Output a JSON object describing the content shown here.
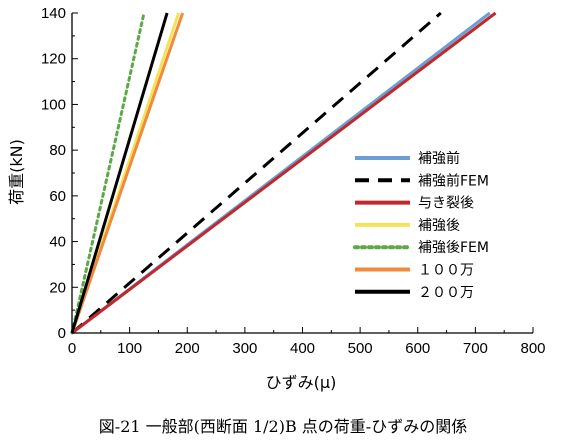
{
  "chart_data": {
    "type": "line",
    "xlabel": "ひずみ(μ)",
    "ylabel": "荷重(kN)",
    "xlim": [
      0,
      800
    ],
    "ylim": [
      0,
      140
    ],
    "xticks": [
      0,
      100,
      200,
      300,
      400,
      500,
      600,
      700,
      800
    ],
    "yticks": [
      0,
      20,
      40,
      60,
      80,
      100,
      120,
      140
    ],
    "grid": false,
    "legend_position": "right",
    "caption": "図-21  一般部(西断面 1/2)B 点の荷重-ひずみの関係",
    "series": [
      {
        "name": "補強前",
        "color": "#6a9fd4",
        "style": "solid",
        "width": 3,
        "x": [
          0,
          725
        ],
        "y": [
          0,
          140
        ]
      },
      {
        "name": "補強前FEM",
        "color": "#000000",
        "style": "dashed",
        "width": 3,
        "x": [
          0,
          640
        ],
        "y": [
          0,
          140
        ]
      },
      {
        "name": "与き裂後",
        "color": "#c0282d",
        "style": "solid",
        "width": 3,
        "x": [
          0,
          735
        ],
        "y": [
          0,
          140
        ]
      },
      {
        "name": "補強後",
        "color": "#f4e35a",
        "style": "solid",
        "width": 3,
        "x": [
          0,
          185
        ],
        "y": [
          0,
          140
        ]
      },
      {
        "name": "補強後FEM",
        "color": "#5da847",
        "style": "dotted",
        "width": 3,
        "x": [
          0,
          125
        ],
        "y": [
          0,
          140
        ]
      },
      {
        "name": "１００万",
        "color": "#f08a3c",
        "style": "solid",
        "width": 3,
        "x": [
          0,
          192
        ],
        "y": [
          0,
          140
        ]
      },
      {
        "name": "２００万",
        "color": "#000000",
        "style": "solid",
        "width": 3,
        "x": [
          0,
          165
        ],
        "y": [
          0,
          140
        ]
      }
    ],
    "legend_order": [
      "補強前",
      "補強前FEM",
      "与き裂後",
      "補強後",
      "補強後FEM",
      "１００万",
      "２００万"
    ]
  }
}
